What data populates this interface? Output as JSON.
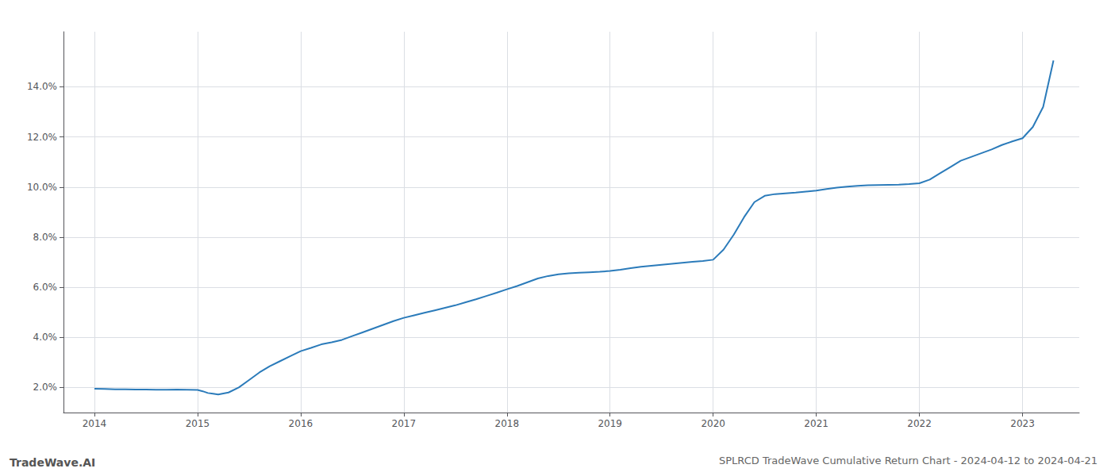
{
  "chart_data": {
    "type": "line",
    "title": "SPLRCD TradeWave Cumulative Return Chart - 2024-04-12 to 2024-04-21",
    "annotations": [
      "TradeWave.AI"
    ],
    "color": "#2b7bba",
    "grid": true,
    "x": [
      2014.0,
      2014.1,
      2014.2,
      2014.3,
      2014.4,
      2014.5,
      2014.6,
      2014.7,
      2014.8,
      2014.9,
      2015.0,
      2015.05,
      2015.1,
      2015.15,
      2015.2,
      2015.3,
      2015.4,
      2015.5,
      2015.6,
      2015.7,
      2015.8,
      2015.9,
      2016.0,
      2016.1,
      2016.2,
      2016.3,
      2016.4,
      2016.5,
      2016.6,
      2016.7,
      2016.8,
      2016.9,
      2017.0,
      2017.1,
      2017.2,
      2017.3,
      2017.4,
      2017.5,
      2017.6,
      2017.7,
      2017.8,
      2017.9,
      2018.0,
      2018.1,
      2018.2,
      2018.3,
      2018.4,
      2018.5,
      2018.6,
      2018.7,
      2018.8,
      2018.9,
      2019.0,
      2019.1,
      2019.2,
      2019.3,
      2019.4,
      2019.5,
      2019.6,
      2019.7,
      2019.8,
      2019.9,
      2020.0,
      2020.1,
      2020.2,
      2020.3,
      2020.4,
      2020.5,
      2020.6,
      2020.7,
      2020.8,
      2020.9,
      2021.0,
      2021.1,
      2021.2,
      2021.3,
      2021.4,
      2021.5,
      2021.6,
      2021.7,
      2021.8,
      2021.9,
      2022.0,
      2022.1,
      2022.2,
      2022.3,
      2022.4,
      2022.5,
      2022.6,
      2022.7,
      2022.8,
      2022.9,
      2023.0,
      2023.1,
      2023.2,
      2023.3
    ],
    "values": [
      1.95,
      1.94,
      1.93,
      1.93,
      1.92,
      1.92,
      1.91,
      1.91,
      1.92,
      1.91,
      1.9,
      1.85,
      1.78,
      1.75,
      1.72,
      1.8,
      2.0,
      2.3,
      2.6,
      2.85,
      3.05,
      3.25,
      3.45,
      3.58,
      3.72,
      3.8,
      3.9,
      4.05,
      4.2,
      4.35,
      4.5,
      4.65,
      4.78,
      4.88,
      4.98,
      5.08,
      5.18,
      5.28,
      5.4,
      5.52,
      5.65,
      5.78,
      5.92,
      6.05,
      6.2,
      6.35,
      6.45,
      6.52,
      6.56,
      6.58,
      6.6,
      6.62,
      6.65,
      6.7,
      6.76,
      6.82,
      6.86,
      6.9,
      6.94,
      6.98,
      7.02,
      7.05,
      7.1,
      7.5,
      8.1,
      8.8,
      9.4,
      9.65,
      9.72,
      9.75,
      9.78,
      9.82,
      9.86,
      9.92,
      9.98,
      10.02,
      10.05,
      10.07,
      10.08,
      10.09,
      10.1,
      10.12,
      10.15,
      10.3,
      10.55,
      10.8,
      11.05,
      11.2,
      11.35,
      11.5,
      11.68,
      11.82,
      11.95,
      12.4,
      13.2,
      15.05
    ],
    "xlim": [
      2013.7,
      2023.55
    ],
    "ylim": [
      1.0,
      16.2
    ],
    "xticks": [
      2014,
      2015,
      2016,
      2017,
      2018,
      2019,
      2020,
      2021,
      2022,
      2023
    ],
    "yticks": [
      {
        "value": 2.0,
        "label": "2.0%"
      },
      {
        "value": 4.0,
        "label": "4.0%"
      },
      {
        "value": 6.0,
        "label": "6.0%"
      },
      {
        "value": 8.0,
        "label": "8.0%"
      },
      {
        "value": 10.0,
        "label": "10.0%"
      },
      {
        "value": 12.0,
        "label": "12.0%"
      },
      {
        "value": 14.0,
        "label": "14.0%"
      }
    ]
  }
}
